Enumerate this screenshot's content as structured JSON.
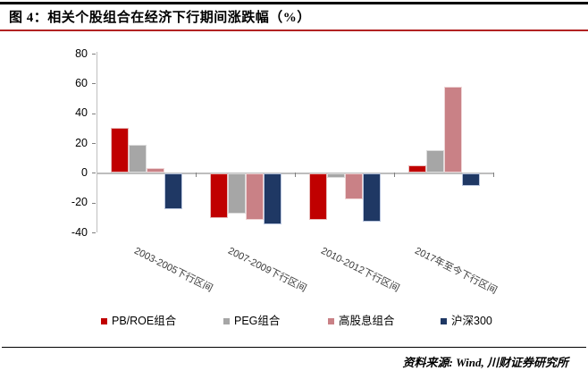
{
  "header": {
    "title": "图 4：相关个股组合在经济下行期间涨跌幅（%）"
  },
  "footer": {
    "source": "资料来源: Wind, 川财证券研究所"
  },
  "colors": {
    "top_rule": "#000000",
    "title_rule": "#B22222",
    "axis_line": "#BFBFBF",
    "tick": "#7F7F7F",
    "text": "#000000",
    "background": "#FFFFFF"
  },
  "chart_data": {
    "type": "bar",
    "title": "相关个股组合在经济下行期间涨跌幅（%）",
    "categories": [
      "2003-2005下行区间",
      "2007-2009下行区间",
      "2010-2012下行区间",
      "2017年至今下行区间"
    ],
    "series": [
      {
        "name": "PB/ROE组合",
        "color": "#C00000",
        "edge": "#E8BCBB",
        "values": [
          30,
          -30,
          -31,
          5
        ]
      },
      {
        "name": "PEG组合",
        "color": "#A6A6A6",
        "edge": "#DCDCDC",
        "values": [
          19,
          -27,
          -3,
          15
        ]
      },
      {
        "name": "高股息组合",
        "color": "#C98186",
        "edge": "#EFD5D6",
        "values": [
          3,
          -31,
          -17,
          58
        ]
      },
      {
        "name": "沪深300",
        "color": "#1F3864",
        "edge": "#B9C5DE",
        "values": [
          -24,
          -34,
          -32,
          -8
        ]
      }
    ],
    "ylim": [
      -40,
      80
    ],
    "ytick_step": 20,
    "ytick_labels": [
      "80",
      "60",
      "40",
      "20",
      "0",
      "-20",
      "-40"
    ],
    "grid": false,
    "legend_position": "bottom"
  }
}
